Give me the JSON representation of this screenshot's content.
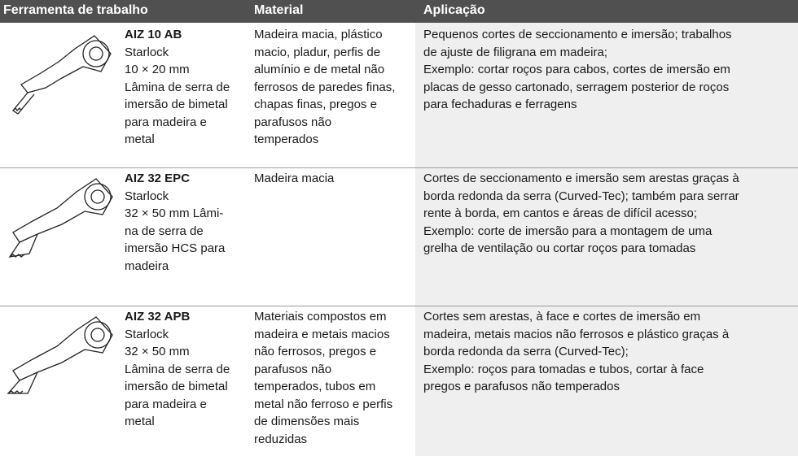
{
  "table": {
    "header": [
      "Ferramenta de trabalho",
      "Material",
      "Aplicação"
    ],
    "rows": [
      {
        "name": "AIZ 10 AB",
        "description": [
          "Starlock",
          "10 × 20 mm",
          "Lâmina de serra de",
          "imersão de bimetal",
          "para madeira e",
          "metal"
        ],
        "material": [
          "Madeira macia, plástico",
          "macio, pladur, perfis de",
          "alumínio e de metal não",
          "ferrosos de paredes finas,",
          "chapas finas, pregos e",
          "parafusos não",
          "temperados"
        ],
        "application": [
          "Pequenos cortes de seccionamento e imersão; trabalhos",
          "de ajuste de filigrana em madeira;",
          "Exemplo: cortar roços para cabos, cortes de imersão em",
          "placas de gesso cartonado, serragem posterior de roços",
          "para fechaduras e ferragens"
        ]
      },
      {
        "name": "AIZ 32 EPC",
        "description": [
          "Starlock",
          "32 × 50 mm Lâmi-",
          "na de serra de",
          "imersão HCS para",
          "madeira"
        ],
        "material": [
          "Madeira macia"
        ],
        "application": [
          "Cortes de seccionamento e imersão sem arestas graças à",
          "borda redonda da serra (Curved-Tec); também para serrar",
          "rente à borda, em cantos e áreas de difícil acesso;",
          "Exemplo: corte de imersão para a montagem de uma",
          "grelha de ventilação ou cortar roços para tomadas"
        ]
      },
      {
        "name": "AIZ 32 APB",
        "description": [
          "Starlock",
          "32 × 50 mm",
          "Lâmina de serra de",
          "imersão de bimetal",
          "para madeira e",
          "metal"
        ],
        "material": [
          "Materiais compostos em",
          "madeira e metais macios",
          "não ferrosos, pregos e",
          "parafusos não",
          "temperados, tubos em",
          "metal não ferroso e perfis",
          "de dimensões mais",
          "reduzidas"
        ],
        "application": [
          "Cortes sem arestas, à face e cortes de imersão em",
          "madeira, metais macios não ferrosos e plástico graças à",
          "borda redonda da serra (Curved-Tec);",
          "Exemplo: roços para tomadas e tubos, cortar à face",
          "pregos e parafusos não temperados"
        ]
      }
    ]
  }
}
